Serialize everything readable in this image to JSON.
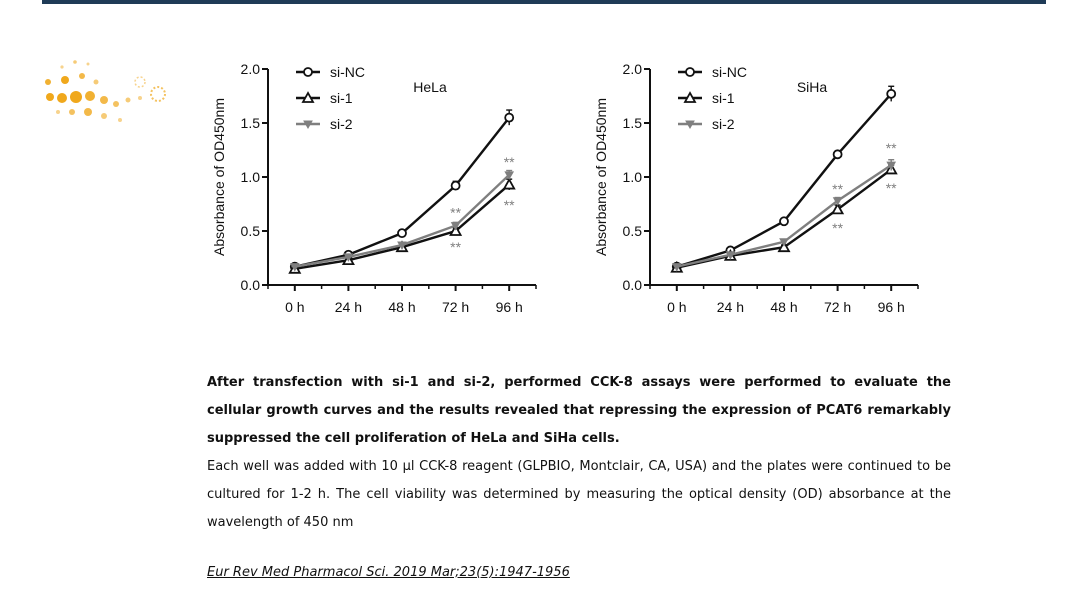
{
  "colors": {
    "top_bar": "#1f3b57",
    "si_nc": "#111111",
    "si_1": "#111111",
    "si_2": "#7f7f7f",
    "logo_gold": "#f0a81c"
  },
  "logo": {
    "icon": "golden-dots-logo"
  },
  "chart_data": [
    {
      "type": "line",
      "title": "HeLa",
      "xlabel": "",
      "ylabel": "Absorbance of OD450nm",
      "categories": [
        "0 h",
        "24 h",
        "48 h",
        "72 h",
        "96 h"
      ],
      "yticks": [
        "0.0",
        "0.5",
        "1.0",
        "1.5",
        "2.0"
      ],
      "ylim": [
        0,
        2
      ],
      "legend_position": "top-left",
      "series": [
        {
          "name": "si-NC",
          "marker": "circle",
          "color": "#111111",
          "values": [
            0.17,
            0.28,
            0.48,
            0.92,
            1.55
          ],
          "errors": [
            0.01,
            0.02,
            0.03,
            0.04,
            0.07
          ]
        },
        {
          "name": "si-1",
          "marker": "triangle",
          "color": "#111111",
          "values": [
            0.15,
            0.23,
            0.35,
            0.5,
            0.93
          ],
          "errors": [
            0.01,
            0.01,
            0.02,
            0.03,
            0.05
          ]
        },
        {
          "name": "si-2",
          "marker": "triangle-down",
          "color": "#7f7f7f",
          "values": [
            0.17,
            0.26,
            0.37,
            0.55,
            1.02
          ],
          "errors": [
            0.01,
            0.01,
            0.02,
            0.03,
            0.04
          ]
        }
      ],
      "annotations": [
        {
          "text": "**",
          "x": "72 h",
          "y": 0.67,
          "color": "#7f7f7f"
        },
        {
          "text": "**",
          "x": "72 h",
          "y": 0.35,
          "color": "#7f7f7f"
        },
        {
          "text": "**",
          "x": "96 h",
          "y": 1.14,
          "color": "#7f7f7f"
        },
        {
          "text": "**",
          "x": "96 h",
          "y": 0.74,
          "color": "#7f7f7f"
        }
      ]
    },
    {
      "type": "line",
      "title": "SiHa",
      "xlabel": "",
      "ylabel": "Absorbance of OD450nm",
      "categories": [
        "0 h",
        "24 h",
        "48 h",
        "72 h",
        "96 h"
      ],
      "yticks": [
        "0.0",
        "0.5",
        "1.0",
        "1.5",
        "2.0"
      ],
      "ylim": [
        0,
        2
      ],
      "legend_position": "top-left",
      "series": [
        {
          "name": "si-NC",
          "marker": "circle",
          "color": "#111111",
          "values": [
            0.17,
            0.32,
            0.59,
            1.21,
            1.77
          ],
          "errors": [
            0.01,
            0.02,
            0.02,
            0.03,
            0.07
          ]
        },
        {
          "name": "si-1",
          "marker": "triangle",
          "color": "#111111",
          "values": [
            0.16,
            0.27,
            0.35,
            0.7,
            1.07
          ],
          "errors": [
            0.01,
            0.01,
            0.02,
            0.04,
            0.04
          ]
        },
        {
          "name": "si-2",
          "marker": "triangle-down",
          "color": "#7f7f7f",
          "values": [
            0.17,
            0.28,
            0.4,
            0.78,
            1.11
          ],
          "errors": [
            0.01,
            0.01,
            0.02,
            0.03,
            0.05
          ]
        }
      ],
      "annotations": [
        {
          "text": "**",
          "x": "72 h",
          "y": 0.89,
          "color": "#7f7f7f"
        },
        {
          "text": "**",
          "x": "72 h",
          "y": 0.53,
          "color": "#7f7f7f"
        },
        {
          "text": "**",
          "x": "96 h",
          "y": 1.27,
          "color": "#7f7f7f"
        },
        {
          "text": "**",
          "x": "96 h",
          "y": 0.9,
          "color": "#7f7f7f"
        }
      ]
    }
  ],
  "caption": {
    "bold_text": "After transfection with si-1 and si-2, performed CCK-8 assays were performed to evaluate the cellular growth curves and the results revealed that repressing the expression of PCAT6 remarkably suppressed the cell proliferation of HeLa and SiHa cells.",
    "normal_text": "Each well was added with 10 μl CCK-8 reagent (GLPBIO, Montclair, CA, USA) and the plates were continued to be cultured for 1-2 h. The cell viability was determined by measuring the optical density (OD) absorbance at the wavelength of 450 nm"
  },
  "citation": "Eur Rev Med Pharmacol Sci. 2019 Mar;23(5):1947-1956"
}
